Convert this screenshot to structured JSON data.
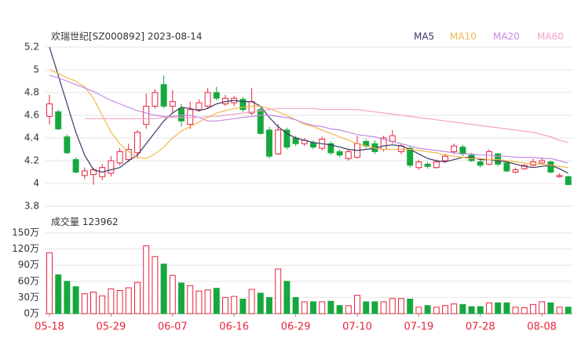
{
  "chart_data": {
    "type": "candlestick",
    "title": "欢瑞世纪[SZ000892] 2023-08-14",
    "categories": [
      "05-18",
      null,
      null,
      null,
      null,
      null,
      null,
      "05-29",
      null,
      null,
      null,
      null,
      null,
      null,
      "06-07",
      null,
      null,
      null,
      null,
      null,
      null,
      "06-16",
      null,
      null,
      null,
      null,
      null,
      null,
      "06-29",
      null,
      null,
      null,
      null,
      null,
      null,
      "07-10",
      null,
      null,
      null,
      null,
      null,
      null,
      "07-19",
      null,
      null,
      null,
      null,
      null,
      null,
      "07-28",
      null,
      null,
      null,
      null,
      null,
      null,
      "08-08",
      null,
      null,
      null
    ],
    "open": [
      4.59,
      4.63,
      4.41,
      4.21,
      4.07,
      4.08,
      4.06,
      4.09,
      4.18,
      4.21,
      4.27,
      4.52,
      4.68,
      4.87,
      4.68,
      4.66,
      4.52,
      4.65,
      4.68,
      4.8,
      4.7,
      4.71,
      4.74,
      4.62,
      4.65,
      4.47,
      4.26,
      4.47,
      4.4,
      4.35,
      4.36,
      4.31,
      4.35,
      4.28,
      4.22,
      4.23,
      4.37,
      4.35,
      4.3,
      4.37,
      4.28,
      4.31,
      4.14,
      4.17,
      4.14,
      4.2,
      4.28,
      4.32,
      4.25,
      4.19,
      4.17,
      4.26,
      4.18,
      4.1,
      4.13,
      4.16,
      4.18,
      4.19,
      4.06,
      4.06
    ],
    "close": [
      4.7,
      4.48,
      4.27,
      4.1,
      4.11,
      4.12,
      4.14,
      4.2,
      4.28,
      4.3,
      4.45,
      4.68,
      4.8,
      4.68,
      4.72,
      4.55,
      4.65,
      4.71,
      4.8,
      4.75,
      4.75,
      4.75,
      4.65,
      4.72,
      4.44,
      4.24,
      4.47,
      4.32,
      4.35,
      4.38,
      4.32,
      4.39,
      4.27,
      4.25,
      4.28,
      4.35,
      4.33,
      4.28,
      4.4,
      4.42,
      4.33,
      4.16,
      4.19,
      4.15,
      4.19,
      4.24,
      4.33,
      4.26,
      4.2,
      4.16,
      4.28,
      4.17,
      4.11,
      4.12,
      4.16,
      4.19,
      4.2,
      4.1,
      4.07,
      3.99
    ],
    "high": [
      4.78,
      4.65,
      4.43,
      4.23,
      4.14,
      4.14,
      4.17,
      4.24,
      4.31,
      4.35,
      4.47,
      4.79,
      4.83,
      4.95,
      4.82,
      4.7,
      4.72,
      4.74,
      4.84,
      4.85,
      4.78,
      4.77,
      4.76,
      4.84,
      4.67,
      4.5,
      4.52,
      4.49,
      4.42,
      4.4,
      4.38,
      4.41,
      4.37,
      4.3,
      4.3,
      4.42,
      4.39,
      4.38,
      4.42,
      4.47,
      4.35,
      4.33,
      4.21,
      4.19,
      4.21,
      4.26,
      4.35,
      4.34,
      4.27,
      4.21,
      4.3,
      4.27,
      4.19,
      4.14,
      4.17,
      4.22,
      4.23,
      4.2,
      4.09,
      4.07
    ],
    "low": [
      4.52,
      4.47,
      4.26,
      4.09,
      4.04,
      3.99,
      4.03,
      4.06,
      4.16,
      4.19,
      4.22,
      4.48,
      4.66,
      4.66,
      4.62,
      4.5,
      4.48,
      4.63,
      4.66,
      4.73,
      4.68,
      4.68,
      4.63,
      4.6,
      4.43,
      4.22,
      4.25,
      4.3,
      4.33,
      4.33,
      4.3,
      4.29,
      4.25,
      4.23,
      4.2,
      4.22,
      4.31,
      4.26,
      4.28,
      4.35,
      4.26,
      4.14,
      4.12,
      4.13,
      4.13,
      4.18,
      4.26,
      4.24,
      4.19,
      4.14,
      4.16,
      4.15,
      4.1,
      4.09,
      4.12,
      4.15,
      4.17,
      4.09,
      4.05,
      3.99
    ],
    "up_color": "#e8243c",
    "down_color": "#16a83f",
    "ylim": [
      3.8,
      5.2
    ],
    "yticks": [
      5.2,
      5,
      4.8,
      4.6,
      4.4,
      4.2,
      4,
      3.8
    ],
    "grid": true,
    "series": [
      {
        "name": "MA5",
        "color": "#3b3766",
        "values": [
          5.2,
          4.95,
          4.7,
          4.45,
          4.25,
          4.12,
          4.1,
          4.12,
          4.14,
          4.2,
          4.25,
          4.35,
          4.45,
          4.55,
          4.62,
          4.67,
          4.66,
          4.64,
          4.66,
          4.7,
          4.72,
          4.73,
          4.72,
          4.72,
          4.68,
          4.58,
          4.5,
          4.44,
          4.4,
          4.38,
          4.36,
          4.35,
          4.34,
          4.32,
          4.3,
          4.29,
          4.3,
          4.31,
          4.33,
          4.34,
          4.33,
          4.3,
          4.26,
          4.22,
          4.2,
          4.19,
          4.21,
          4.23,
          4.23,
          4.21,
          4.21,
          4.2,
          4.19,
          4.17,
          4.15,
          4.14,
          4.15,
          4.16,
          4.13,
          4.09
        ]
      },
      {
        "name": "MA10",
        "color": "#f2b84b",
        "values": [
          5.0,
          4.97,
          4.93,
          4.9,
          4.85,
          4.75,
          4.6,
          4.45,
          4.35,
          4.28,
          4.23,
          4.22,
          4.26,
          4.32,
          4.4,
          4.46,
          4.5,
          4.54,
          4.58,
          4.62,
          4.64,
          4.66,
          4.67,
          4.68,
          4.68,
          4.66,
          4.63,
          4.6,
          4.56,
          4.52,
          4.5,
          4.47,
          4.44,
          4.41,
          4.38,
          4.35,
          4.33,
          4.31,
          4.3,
          4.3,
          4.3,
          4.3,
          4.29,
          4.28,
          4.27,
          4.25,
          4.24,
          4.23,
          4.22,
          4.22,
          4.21,
          4.21,
          4.2,
          4.19,
          4.18,
          4.17,
          4.17,
          4.16,
          4.15,
          4.14
        ]
      },
      {
        "name": "MA20",
        "color": "#c48be0",
        "values": [
          4.95,
          4.93,
          4.9,
          4.87,
          4.84,
          4.81,
          4.77,
          4.73,
          4.7,
          4.67,
          4.64,
          4.62,
          4.6,
          4.59,
          4.59,
          4.6,
          4.6,
          4.58,
          4.55,
          4.55,
          4.56,
          4.57,
          4.58,
          4.59,
          4.6,
          4.6,
          4.59,
          4.58,
          4.56,
          4.53,
          4.51,
          4.5,
          4.48,
          4.47,
          4.45,
          4.43,
          4.42,
          4.41,
          4.39,
          4.37,
          4.35,
          4.33,
          4.31,
          4.3,
          4.29,
          4.28,
          4.27,
          4.26,
          4.26,
          4.25,
          4.25,
          4.24,
          4.24,
          4.23,
          4.23,
          4.23,
          4.22,
          4.22,
          4.2,
          4.18
        ]
      },
      {
        "name": "MA60",
        "color": "#f2a2c8",
        "values": [
          null,
          null,
          null,
          null,
          4.57,
          4.57,
          4.57,
          4.57,
          4.57,
          4.57,
          4.57,
          4.57,
          4.57,
          4.58,
          4.58,
          4.58,
          4.58,
          4.58,
          4.59,
          4.59,
          4.6,
          4.61,
          4.62,
          4.63,
          4.64,
          4.65,
          4.66,
          4.66,
          4.66,
          4.66,
          4.66,
          4.65,
          4.65,
          4.65,
          4.65,
          4.65,
          4.64,
          4.63,
          4.62,
          4.61,
          4.6,
          4.59,
          4.58,
          4.57,
          4.56,
          4.55,
          4.54,
          4.53,
          4.52,
          4.51,
          4.5,
          4.49,
          4.48,
          4.47,
          4.46,
          4.45,
          4.43,
          4.41,
          4.38,
          4.36
        ]
      }
    ],
    "volume": {
      "title": "成交量",
      "last": 123962,
      "values": [
        113,
        72,
        60,
        50,
        37,
        40,
        33,
        46,
        43,
        48,
        58,
        126,
        106,
        92,
        71,
        57,
        52,
        42,
        44,
        47,
        30,
        32,
        27,
        45,
        38,
        30,
        83,
        60,
        30,
        22,
        22,
        22,
        23,
        15,
        15,
        34,
        22,
        22,
        22,
        28,
        28,
        27,
        12,
        15,
        12,
        15,
        18,
        17,
        13,
        13,
        20,
        20,
        20,
        12,
        11,
        17,
        22,
        20,
        12,
        12
      ],
      "ylim": [
        0,
        150
      ],
      "yticks": [
        {
          "value": 150,
          "label": "150万"
        },
        {
          "value": 120,
          "label": "120万"
        },
        {
          "value": 90,
          "label": "90万"
        },
        {
          "value": 60,
          "label": "60万"
        },
        {
          "value": 30,
          "label": "30万"
        },
        {
          "value": 0,
          "label": "0万"
        }
      ]
    }
  }
}
